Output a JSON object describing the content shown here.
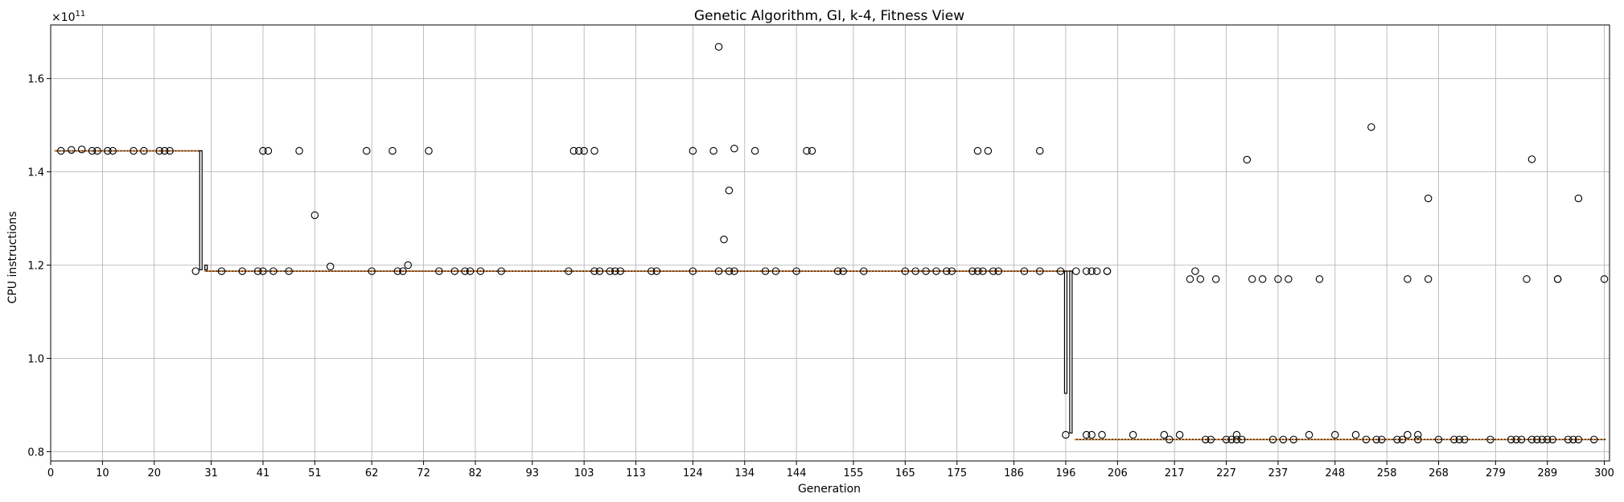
{
  "chart_data": {
    "type": "box",
    "title": "Genetic Algorithm, GI, k-4, Fitness View",
    "xlabel": "Generation",
    "ylabel": "CPU instructions",
    "y_multiplier_label": "×10",
    "y_multiplier_exp": "11",
    "xlim": [
      0,
      301
    ],
    "ylim": [
      0.78,
      1.715
    ],
    "y_scale": 100000000000.0,
    "grid": true,
    "x_ticks": [
      0,
      10,
      20,
      31,
      41,
      51,
      62,
      72,
      82,
      93,
      103,
      113,
      124,
      134,
      144,
      155,
      165,
      175,
      186,
      196,
      206,
      217,
      227,
      237,
      248,
      258,
      268,
      279,
      289,
      300
    ],
    "y_ticks": [
      0.8,
      1.0,
      1.2,
      1.4,
      1.6
    ],
    "y_tick_labels": [
      "0.8",
      "1.0",
      "1.2",
      "1.4",
      "1.6"
    ],
    "segments": [
      {
        "from": 1,
        "to": 29,
        "median": 1.445
      },
      {
        "from": 30,
        "to": 197,
        "median": 1.187
      },
      {
        "from": 198,
        "to": 300,
        "median": 0.826
      }
    ],
    "boxes": [
      {
        "x": 29,
        "q1": 1.19,
        "q3": 1.445
      },
      {
        "x": 30,
        "q1": 1.19,
        "q3": 1.2
      },
      {
        "x": 196,
        "q1": 0.925,
        "q3": 1.187
      },
      {
        "x": 197,
        "q1": 0.84,
        "q3": 1.187
      }
    ],
    "outliers": [
      [
        2,
        1.445
      ],
      [
        4,
        1.447
      ],
      [
        6,
        1.448
      ],
      [
        8,
        1.445
      ],
      [
        9,
        1.445
      ],
      [
        11,
        1.445
      ],
      [
        12,
        1.445
      ],
      [
        16,
        1.445
      ],
      [
        18,
        1.445
      ],
      [
        21,
        1.445
      ],
      [
        22,
        1.445
      ],
      [
        23,
        1.445
      ],
      [
        28,
        1.187
      ],
      [
        33,
        1.187
      ],
      [
        37,
        1.187
      ],
      [
        40,
        1.187
      ],
      [
        41,
        1.187
      ],
      [
        41,
        1.445
      ],
      [
        42,
        1.445
      ],
      [
        43,
        1.187
      ],
      [
        46,
        1.187
      ],
      [
        48,
        1.445
      ],
      [
        51,
        1.307
      ],
      [
        54,
        1.197
      ],
      [
        61,
        1.445
      ],
      [
        62,
        1.187
      ],
      [
        66,
        1.445
      ],
      [
        67,
        1.187
      ],
      [
        68,
        1.187
      ],
      [
        69,
        1.2
      ],
      [
        73,
        1.445
      ],
      [
        75,
        1.187
      ],
      [
        78,
        1.187
      ],
      [
        80,
        1.187
      ],
      [
        81,
        1.187
      ],
      [
        83,
        1.187
      ],
      [
        87,
        1.187
      ],
      [
        100,
        1.187
      ],
      [
        101,
        1.445
      ],
      [
        102,
        1.445
      ],
      [
        103,
        1.445
      ],
      [
        105,
        1.445
      ],
      [
        105,
        1.187
      ],
      [
        106,
        1.187
      ],
      [
        108,
        1.187
      ],
      [
        109,
        1.187
      ],
      [
        110,
        1.187
      ],
      [
        116,
        1.187
      ],
      [
        117,
        1.187
      ],
      [
        124,
        1.445
      ],
      [
        124,
        1.187
      ],
      [
        128,
        1.445
      ],
      [
        129,
        1.668
      ],
      [
        129,
        1.187
      ],
      [
        130,
        1.255
      ],
      [
        131,
        1.36
      ],
      [
        131,
        1.187
      ],
      [
        132,
        1.45
      ],
      [
        132,
        1.187
      ],
      [
        136,
        1.445
      ],
      [
        138,
        1.187
      ],
      [
        140,
        1.187
      ],
      [
        144,
        1.187
      ],
      [
        146,
        1.445
      ],
      [
        147,
        1.445
      ],
      [
        152,
        1.187
      ],
      [
        153,
        1.187
      ],
      [
        157,
        1.187
      ],
      [
        165,
        1.187
      ],
      [
        167,
        1.187
      ],
      [
        169,
        1.187
      ],
      [
        171,
        1.187
      ],
      [
        173,
        1.187
      ],
      [
        174,
        1.187
      ],
      [
        178,
        1.187
      ],
      [
        179,
        1.445
      ],
      [
        179,
        1.187
      ],
      [
        180,
        1.187
      ],
      [
        181,
        1.445
      ],
      [
        182,
        1.187
      ],
      [
        183,
        1.187
      ],
      [
        188,
        1.187
      ],
      [
        191,
        1.445
      ],
      [
        191,
        1.187
      ],
      [
        195,
        1.187
      ],
      [
        196,
        0.836
      ],
      [
        198,
        1.187
      ],
      [
        200,
        1.187
      ],
      [
        200,
        0.836
      ],
      [
        201,
        0.836
      ],
      [
        201,
        1.187
      ],
      [
        202,
        1.187
      ],
      [
        203,
        0.836
      ],
      [
        204,
        1.187
      ],
      [
        204,
        1.187
      ],
      [
        209,
        0.836
      ],
      [
        215,
        0.836
      ],
      [
        216,
        0.826
      ],
      [
        218,
        0.836
      ],
      [
        220,
        1.17
      ],
      [
        221,
        1.187
      ],
      [
        222,
        1.17
      ],
      [
        223,
        0.826
      ],
      [
        224,
        0.826
      ],
      [
        225,
        1.17
      ],
      [
        227,
        0.826
      ],
      [
        228,
        0.826
      ],
      [
        229,
        0.836
      ],
      [
        229,
        0.826
      ],
      [
        230,
        0.826
      ],
      [
        231,
        1.426
      ],
      [
        232,
        1.17
      ],
      [
        234,
        1.17
      ],
      [
        236,
        0.826
      ],
      [
        237,
        1.17
      ],
      [
        238,
        0.826
      ],
      [
        239,
        1.17
      ],
      [
        240,
        0.826
      ],
      [
        243,
        0.836
      ],
      [
        245,
        1.17
      ],
      [
        248,
        0.836
      ],
      [
        252,
        0.836
      ],
      [
        254,
        0.826
      ],
      [
        255,
        1.496
      ],
      [
        256,
        0.826
      ],
      [
        257,
        0.826
      ],
      [
        260,
        0.826
      ],
      [
        261,
        0.826
      ],
      [
        262,
        0.836
      ],
      [
        262,
        1.17
      ],
      [
        264,
        0.836
      ],
      [
        264,
        0.826
      ],
      [
        266,
        1.343
      ],
      [
        266,
        1.17
      ],
      [
        268,
        0.826
      ],
      [
        271,
        0.826
      ],
      [
        272,
        0.826
      ],
      [
        273,
        0.826
      ],
      [
        278,
        0.826
      ],
      [
        282,
        0.826
      ],
      [
        283,
        0.826
      ],
      [
        284,
        0.826
      ],
      [
        285,
        1.17
      ],
      [
        286,
        1.427
      ],
      [
        286,
        0.826
      ],
      [
        287,
        0.826
      ],
      [
        288,
        0.826
      ],
      [
        289,
        0.826
      ],
      [
        290,
        0.826
      ],
      [
        291,
        1.17
      ],
      [
        291,
        1.17
      ],
      [
        293,
        0.826
      ],
      [
        294,
        0.826
      ],
      [
        295,
        1.343
      ],
      [
        295,
        0.826
      ],
      [
        298,
        0.826
      ],
      [
        300,
        1.17
      ]
    ]
  }
}
